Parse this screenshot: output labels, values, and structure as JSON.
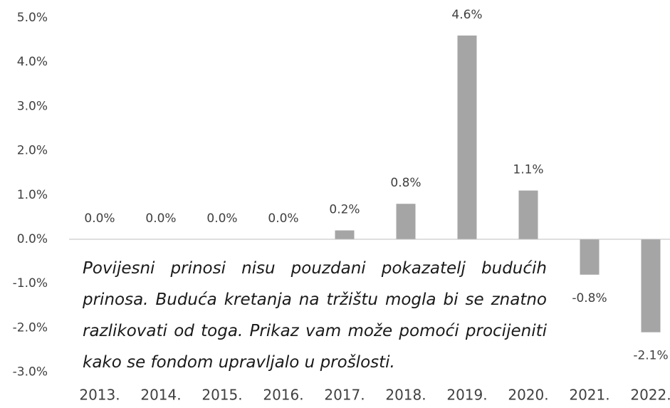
{
  "chart_data": {
    "type": "bar",
    "categories": [
      "2013.",
      "2014.",
      "2015.",
      "2016.",
      "2017.",
      "2018.",
      "2019.",
      "2020.",
      "2021.",
      "2022."
    ],
    "values": [
      0.0,
      0.0,
      0.0,
      0.0,
      0.2,
      0.8,
      4.6,
      1.1,
      -0.8,
      -2.1
    ],
    "value_labels": [
      "0.0%",
      "0.0%",
      "0.0%",
      "0.0%",
      "0.2%",
      "0.8%",
      "4.6%",
      "1.1%",
      "-0.8%",
      "-2.1%"
    ],
    "color": "#a5a5a5",
    "ylim": [
      -3,
      5
    ],
    "yticks": [
      {
        "value": -3,
        "label": "-3.0%"
      },
      {
        "value": -2,
        "label": "-2.0%"
      },
      {
        "value": -1,
        "label": "-1.0%"
      },
      {
        "value": 0,
        "label": "0.0%"
      },
      {
        "value": 1,
        "label": "1.0%"
      },
      {
        "value": 2,
        "label": "2.0%"
      },
      {
        "value": 3,
        "label": "3.0%"
      },
      {
        "value": 4,
        "label": "4.0%"
      },
      {
        "value": 5,
        "label": "5.0%"
      }
    ],
    "grid": false,
    "annotation": "Povijesni prinosi nisu pouzdani pokazatelj budućih prinosa. Buduća kretanja na tržištu mogla bi se znatno razlikovati od toga. Prikaz vam može pomoći procijeniti kako se fondom upravljalo u prošlosti."
  }
}
